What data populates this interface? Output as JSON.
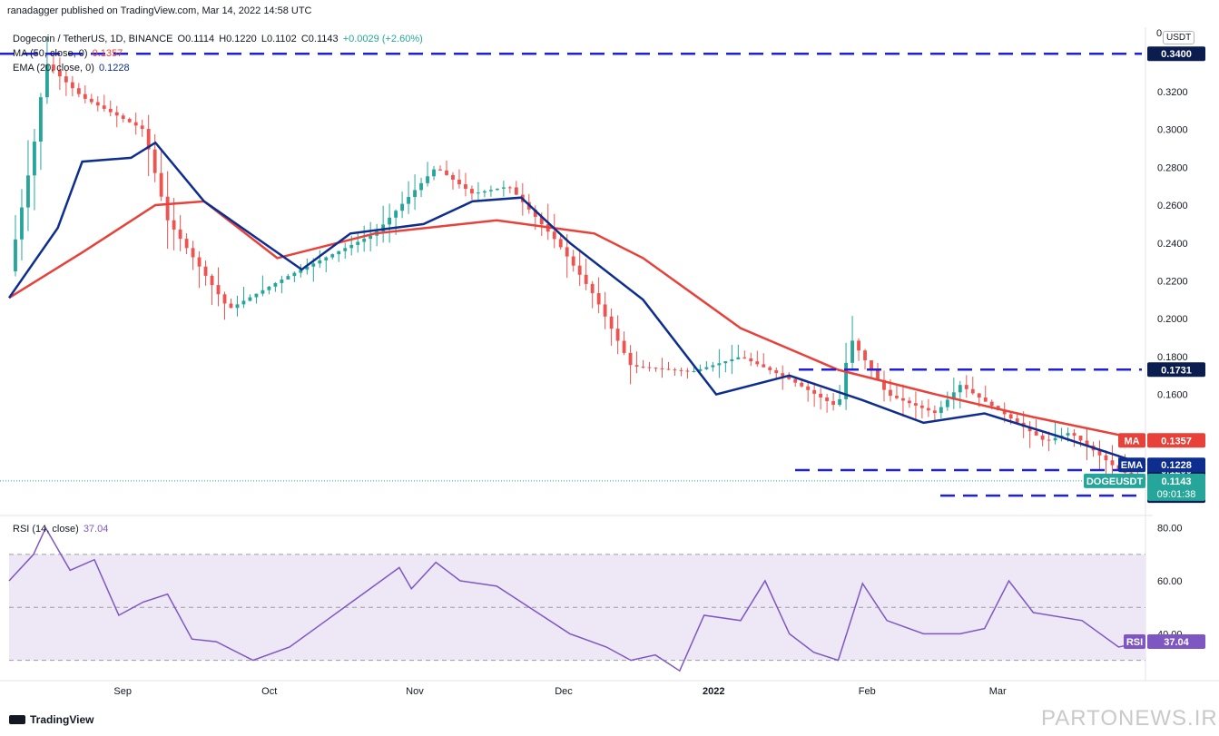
{
  "publisher": "ranadagger published on TradingView.com, Mar 14, 2022 14:58 UTC",
  "symbol_line": {
    "symbol": "Dogecoin / TetherUS, 1D, BINANCE",
    "open": "O0.1114",
    "high": "H0.1220",
    "low": "L0.1102",
    "close": "C0.1143",
    "change": "+0.0029 (+2.60%)"
  },
  "ma_legend": {
    "label": "MA (50, close, 0)",
    "value": "0.1357"
  },
  "ema_legend": {
    "label": "EMA (20, close, 0)",
    "value": "0.1228"
  },
  "rsi_legend": {
    "label": "RSI (14, close)",
    "value": "37.04"
  },
  "currency_button": "USDT",
  "axis_zero": "0",
  "footer_brand": "TradingView",
  "watermark": "PARTONEWS.IR",
  "colors": {
    "up": "#26a69a",
    "down": "#ef5350",
    "ema": "#0d2d8f",
    "ma": "#e8413a",
    "levels": "#1f1fe0",
    "rsi": "#7e57c2",
    "rsi_band": "#ede7f6"
  },
  "chart_data": [
    {
      "type": "candlestick",
      "title": "Dogecoin / TetherUS, 1D, BINANCE",
      "x_ticks": [
        "Sep",
        "Oct",
        "Nov",
        "Dec",
        "2022",
        "Feb",
        "Mar"
      ],
      "y_ticks": [
        "0.3200",
        "0.3000",
        "0.2800",
        "0.2600",
        "0.2400",
        "0.2200",
        "0.2000",
        "0.1800",
        "0.1600"
      ],
      "ylim": [
        0.097,
        0.354
      ],
      "date_range": [
        "2021-08-12",
        "2022-03-14"
      ],
      "last": {
        "open": 0.1114,
        "high": 0.122,
        "low": 0.1102,
        "close": 0.1143,
        "change": "+0.0029 (+2.60%)"
      },
      "series": [
        {
          "name": "MA (50, close, 0)",
          "badge": "MA",
          "last_value": "0.1357",
          "approx_path": [
            [
              0,
              0.211
            ],
            [
              30,
              0.235
            ],
            [
              60,
              0.26
            ],
            [
              80,
              0.262
            ],
            [
              110,
              0.232
            ],
            [
              150,
              0.245
            ],
            [
              200,
              0.252
            ],
            [
              240,
              0.245
            ],
            [
              260,
              0.232
            ],
            [
              300,
              0.195
            ],
            [
              340,
              0.173
            ],
            [
              380,
              0.16
            ],
            [
              420,
              0.148
            ],
            [
              466,
              0.1357
            ]
          ]
        },
        {
          "name": "EMA (20, close, 0)",
          "badge": "EMA",
          "last_value": "0.1228",
          "approx_path": [
            [
              0,
              0.211
            ],
            [
              20,
              0.248
            ],
            [
              30,
              0.283
            ],
            [
              50,
              0.285
            ],
            [
              60,
              0.293
            ],
            [
              80,
              0.262
            ],
            [
              120,
              0.226
            ],
            [
              140,
              0.245
            ],
            [
              170,
              0.25
            ],
            [
              190,
              0.262
            ],
            [
              210,
              0.264
            ],
            [
              230,
              0.24
            ],
            [
              260,
              0.21
            ],
            [
              290,
              0.16
            ],
            [
              320,
              0.17
            ],
            [
              350,
              0.157
            ],
            [
              375,
              0.145
            ],
            [
              400,
              0.15
            ],
            [
              430,
              0.138
            ],
            [
              466,
              0.1228
            ]
          ]
        },
        {
          "name": "DOGEUSDT",
          "badge": "DOGEUSDT",
          "last_value": "0.1143",
          "countdown": "09:01:38",
          "approx_path": [
            [
              0,
              0.225
            ],
            [
              10,
              0.29
            ],
            [
              15,
              0.335
            ],
            [
              30,
              0.317
            ],
            [
              55,
              0.3
            ],
            [
              65,
              0.252
            ],
            [
              90,
              0.205
            ],
            [
              115,
              0.223
            ],
            [
              150,
              0.245
            ],
            [
              175,
              0.28
            ],
            [
              190,
              0.266
            ],
            [
              205,
              0.27
            ],
            [
              225,
              0.24
            ],
            [
              240,
              0.212
            ],
            [
              255,
              0.175
            ],
            [
              280,
              0.172
            ],
            [
              300,
              0.18
            ],
            [
              320,
              0.168
            ],
            [
              340,
              0.153
            ],
            [
              345,
              0.19
            ],
            [
              360,
              0.16
            ],
            [
              380,
              0.15
            ],
            [
              390,
              0.165
            ],
            [
              410,
              0.148
            ],
            [
              425,
              0.135
            ],
            [
              435,
              0.14
            ],
            [
              455,
              0.12
            ],
            [
              466,
              0.1143
            ]
          ]
        }
      ],
      "horizontal_levels": [
        {
          "value": 0.34,
          "label": "0.3400"
        },
        {
          "value": 0.1731,
          "label": "0.1731"
        },
        {
          "value": 0.12,
          "label": "0.1200"
        },
        {
          "value": 0.1065,
          "label": "0.1065"
        }
      ]
    },
    {
      "type": "line",
      "title": "RSI (14, close)",
      "y_ticks": [
        "80.00",
        "60.00",
        "40.00"
      ],
      "ylim": [
        23,
        84
      ],
      "band": [
        30,
        70
      ],
      "last_value": "37.04",
      "series": [
        {
          "name": "RSI (14, close)",
          "approx_path": [
            [
              0,
              60
            ],
            [
              10,
              70
            ],
            [
              15,
              80
            ],
            [
              25,
              64
            ],
            [
              35,
              68
            ],
            [
              45,
              47
            ],
            [
              55,
              52
            ],
            [
              65,
              55
            ],
            [
              75,
              38
            ],
            [
              85,
              37
            ],
            [
              100,
              30
            ],
            [
              115,
              35
            ],
            [
              130,
              45
            ],
            [
              145,
              55
            ],
            [
              160,
              65
            ],
            [
              165,
              57
            ],
            [
              175,
              67
            ],
            [
              185,
              60
            ],
            [
              200,
              58
            ],
            [
              210,
              52
            ],
            [
              230,
              40
            ],
            [
              245,
              35
            ],
            [
              255,
              30
            ],
            [
              265,
              32
            ],
            [
              275,
              26
            ],
            [
              285,
              47
            ],
            [
              300,
              45
            ],
            [
              310,
              60
            ],
            [
              320,
              40
            ],
            [
              330,
              33
            ],
            [
              340,
              30
            ],
            [
              350,
              59
            ],
            [
              360,
              45
            ],
            [
              375,
              40
            ],
            [
              390,
              40
            ],
            [
              400,
              42
            ],
            [
              410,
              60
            ],
            [
              420,
              48
            ],
            [
              440,
              45
            ],
            [
              455,
              35
            ],
            [
              466,
              37.04
            ]
          ]
        }
      ]
    }
  ]
}
